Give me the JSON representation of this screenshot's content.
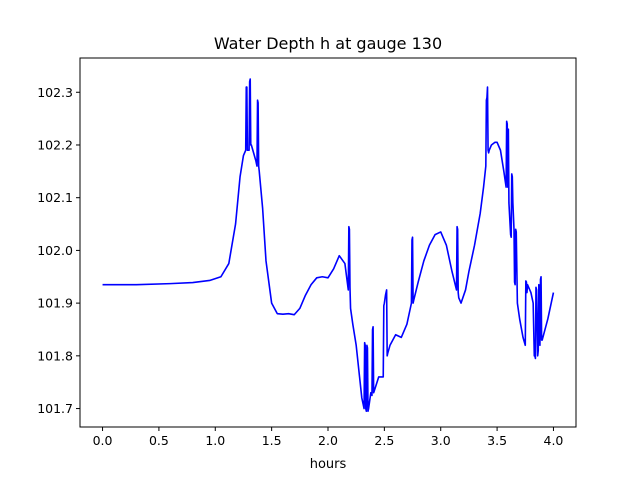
{
  "chart_data": {
    "type": "line",
    "title": "Water Depth h at gauge 130",
    "xlabel": "hours",
    "ylabel": "",
    "xlim": [
      -0.2,
      4.2
    ],
    "ylim": [
      101.665,
      102.365
    ],
    "xticks": [
      0.0,
      0.5,
      1.0,
      1.5,
      2.0,
      2.5,
      3.0,
      3.5,
      4.0
    ],
    "xtick_labels": [
      "0.0",
      "0.5",
      "1.0",
      "1.5",
      "2.0",
      "2.5",
      "3.0",
      "3.5",
      "4.0"
    ],
    "yticks": [
      101.7,
      101.8,
      101.9,
      102.0,
      102.1,
      102.2,
      102.3
    ],
    "ytick_labels": [
      "101.7",
      "101.8",
      "101.9",
      "102.0",
      "102.1",
      "102.2",
      "102.3"
    ],
    "grid": false,
    "legend": "none",
    "series": [
      {
        "color": "#0000ff",
        "x": [
          0.0,
          0.3,
          0.6,
          0.8,
          0.95,
          1.05,
          1.12,
          1.18,
          1.22,
          1.25,
          1.27,
          1.275,
          1.28,
          1.285,
          1.3,
          1.305,
          1.31,
          1.315,
          1.32,
          1.34,
          1.36,
          1.37,
          1.375,
          1.38,
          1.385,
          1.39,
          1.42,
          1.45,
          1.5,
          1.55,
          1.6,
          1.65,
          1.7,
          1.75,
          1.8,
          1.85,
          1.9,
          1.95,
          2.0,
          2.05,
          2.1,
          2.15,
          2.18,
          2.185,
          2.19,
          2.195,
          2.2,
          2.22,
          2.25,
          2.28,
          2.3,
          2.32,
          2.325,
          2.33,
          2.335,
          2.34,
          2.345,
          2.35,
          2.355,
          2.36,
          2.38,
          2.39,
          2.395,
          2.4,
          2.405,
          2.42,
          2.45,
          2.48,
          2.49,
          2.495,
          2.5,
          2.51,
          2.52,
          2.525,
          2.53,
          2.55,
          2.6,
          2.65,
          2.7,
          2.74,
          2.745,
          2.75,
          2.755,
          2.76,
          2.8,
          2.85,
          2.9,
          2.95,
          3.0,
          3.05,
          3.1,
          3.14,
          3.145,
          3.15,
          3.155,
          3.16,
          3.18,
          3.22,
          3.25,
          3.3,
          3.35,
          3.38,
          3.4,
          3.405,
          3.41,
          3.415,
          3.42,
          3.425,
          3.43,
          3.45,
          3.48,
          3.5,
          3.53,
          3.56,
          3.58,
          3.585,
          3.59,
          3.595,
          3.6,
          3.605,
          3.62,
          3.625,
          3.63,
          3.635,
          3.64,
          3.65,
          3.655,
          3.66,
          3.665,
          3.67,
          3.68,
          3.7,
          3.73,
          3.75,
          3.755,
          3.76,
          3.765,
          3.77,
          3.78,
          3.8,
          3.82,
          3.83,
          3.835,
          3.84,
          3.845,
          3.85,
          3.86,
          3.865,
          3.87,
          3.875,
          3.88,
          3.885,
          3.89,
          3.895,
          3.9,
          3.95,
          4.0
        ],
        "y": [
          101.935,
          101.935,
          101.937,
          101.939,
          101.943,
          101.95,
          101.975,
          102.05,
          102.14,
          102.18,
          102.19,
          102.31,
          102.31,
          102.19,
          102.19,
          102.32,
          102.325,
          102.2,
          102.2,
          102.185,
          102.17,
          102.16,
          102.285,
          102.28,
          102.16,
          102.15,
          102.08,
          101.98,
          101.9,
          101.88,
          101.879,
          101.88,
          101.878,
          101.89,
          101.915,
          101.935,
          101.948,
          101.95,
          101.948,
          101.965,
          101.99,
          101.975,
          101.925,
          102.045,
          102.04,
          101.93,
          101.89,
          101.86,
          101.82,
          101.76,
          101.72,
          101.7,
          101.825,
          101.82,
          101.7,
          101.695,
          101.82,
          101.815,
          101.695,
          101.7,
          101.73,
          101.725,
          101.85,
          101.855,
          101.73,
          101.74,
          101.76,
          101.76,
          101.76,
          101.895,
          101.9,
          101.915,
          101.925,
          101.8,
          101.805,
          101.82,
          101.84,
          101.835,
          101.86,
          101.9,
          102.02,
          102.025,
          101.9,
          101.905,
          101.94,
          101.98,
          102.01,
          102.03,
          102.035,
          102.01,
          101.96,
          101.925,
          102.045,
          102.04,
          101.92,
          101.91,
          101.9,
          101.925,
          101.96,
          102.01,
          102.07,
          102.12,
          102.16,
          102.285,
          102.29,
          102.31,
          102.19,
          102.185,
          102.19,
          102.2,
          102.205,
          102.205,
          102.19,
          102.15,
          102.12,
          102.245,
          102.24,
          102.12,
          102.23,
          102.09,
          102.03,
          102.025,
          102.145,
          102.14,
          102.09,
          102.04,
          101.94,
          101.935,
          102.04,
          102.035,
          101.9,
          101.87,
          101.835,
          101.82,
          101.942,
          101.94,
          101.92,
          101.935,
          101.93,
          101.92,
          101.9,
          101.8,
          101.8,
          101.795,
          101.93,
          101.925,
          101.8,
          101.81,
          101.935,
          101.93,
          101.82,
          101.945,
          101.95,
          101.83,
          101.83,
          101.87,
          101.92
        ]
      }
    ]
  }
}
